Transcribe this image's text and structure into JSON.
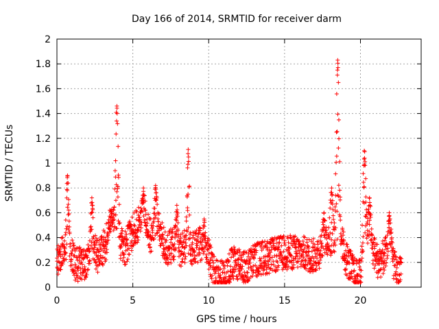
{
  "chart_data": {
    "type": "scatter",
    "title": "Day 166 of 2014, SRMTID for receiver darm",
    "xlabel": "GPS time / hours",
    "ylabel": "SRMTID / TECUs",
    "xlim": [
      0,
      24
    ],
    "ylim": [
      0,
      2
    ],
    "x_ticks": [
      0,
      5,
      10,
      15,
      20
    ],
    "x_tick_labels": [
      "0",
      "5",
      "10",
      "15",
      "20"
    ],
    "y_ticks": [
      0,
      0.2,
      0.4,
      0.6,
      0.8,
      1,
      1.2,
      1.4,
      1.6,
      1.8,
      2
    ],
    "y_tick_labels": [
      "0",
      "0.2",
      "0.4",
      "0.6",
      "0.8",
      "1",
      "1.2",
      "1.4",
      "1.6",
      "1.8",
      "2"
    ],
    "grid": true,
    "marker": "+",
    "color": "#ff0000",
    "x_end": 22.7,
    "baseline_control_points": [
      [
        0.0,
        0.22
      ],
      [
        0.5,
        0.28
      ],
      [
        0.8,
        0.32
      ],
      [
        1.2,
        0.18
      ],
      [
        2.0,
        0.2
      ],
      [
        2.3,
        0.3
      ],
      [
        2.8,
        0.25
      ],
      [
        3.2,
        0.35
      ],
      [
        3.6,
        0.55
      ],
      [
        4.0,
        0.45
      ],
      [
        4.4,
        0.28
      ],
      [
        5.0,
        0.45
      ],
      [
        5.7,
        0.55
      ],
      [
        6.2,
        0.4
      ],
      [
        6.6,
        0.5
      ],
      [
        7.2,
        0.3
      ],
      [
        7.7,
        0.35
      ],
      [
        8.2,
        0.3
      ],
      [
        8.6,
        0.35
      ],
      [
        9.0,
        0.3
      ],
      [
        9.5,
        0.35
      ],
      [
        9.9,
        0.3
      ],
      [
        10.3,
        0.12
      ],
      [
        11.0,
        0.08
      ],
      [
        11.5,
        0.18
      ],
      [
        12.0,
        0.2
      ],
      [
        12.5,
        0.15
      ],
      [
        13.0,
        0.22
      ],
      [
        14.0,
        0.25
      ],
      [
        15.0,
        0.28
      ],
      [
        16.0,
        0.28
      ],
      [
        17.0,
        0.25
      ],
      [
        17.5,
        0.32
      ],
      [
        18.2,
        0.3
      ],
      [
        18.6,
        0.45
      ],
      [
        19.0,
        0.25
      ],
      [
        19.6,
        0.1
      ],
      [
        20.0,
        0.08
      ],
      [
        20.4,
        0.45
      ],
      [
        20.8,
        0.3
      ],
      [
        21.2,
        0.2
      ],
      [
        21.6,
        0.25
      ],
      [
        22.0,
        0.35
      ],
      [
        22.3,
        0.12
      ],
      [
        22.7,
        0.1
      ]
    ],
    "peaks": [
      {
        "x": 0.7,
        "y": 0.9,
        "width": 0.12
      },
      {
        "x": 2.3,
        "y": 0.72,
        "width": 0.12
      },
      {
        "x": 3.5,
        "y": 0.62,
        "width": 0.2
      },
      {
        "x": 3.95,
        "y": 1.46,
        "width": 0.13
      },
      {
        "x": 5.7,
        "y": 0.8,
        "width": 0.2
      },
      {
        "x": 6.5,
        "y": 0.82,
        "width": 0.15
      },
      {
        "x": 7.9,
        "y": 0.66,
        "width": 0.12
      },
      {
        "x": 8.65,
        "y": 1.11,
        "width": 0.1
      },
      {
        "x": 9.7,
        "y": 0.55,
        "width": 0.12
      },
      {
        "x": 17.6,
        "y": 0.6,
        "width": 0.18
      },
      {
        "x": 18.1,
        "y": 0.8,
        "width": 0.18
      },
      {
        "x": 18.5,
        "y": 1.83,
        "width": 0.13
      },
      {
        "x": 20.25,
        "y": 1.1,
        "width": 0.13
      },
      {
        "x": 20.6,
        "y": 0.72,
        "width": 0.15
      },
      {
        "x": 21.9,
        "y": 0.6,
        "width": 0.15
      }
    ],
    "sample_step_hours": 0.035,
    "points_per_step": 3,
    "spread": 0.14
  }
}
